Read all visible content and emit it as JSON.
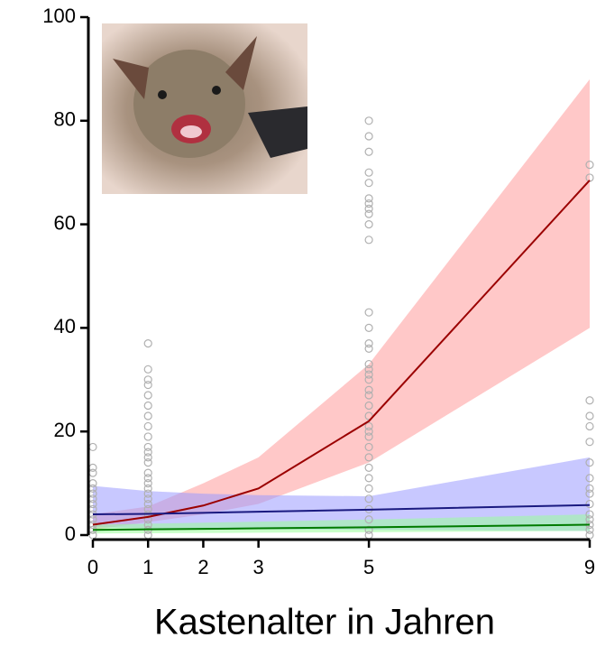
{
  "chart_data": {
    "type": "line",
    "x_label": "Kastenalter in Jahren",
    "x": [
      0,
      1,
      2,
      3,
      5,
      9
    ],
    "xlim": [
      0,
      9
    ],
    "xticks": [
      0,
      1,
      2,
      3,
      5,
      9
    ],
    "ylim": [
      0,
      100
    ],
    "yticks": [
      0,
      20,
      40,
      60,
      80,
      100
    ],
    "series": [
      {
        "color": "#9b0000",
        "band_color": "#ff9a9a",
        "values": [
          2,
          3.5,
          5.7,
          9,
          22,
          68.5
        ],
        "band_lower": [
          1,
          2.5,
          4,
          6,
          14,
          40
        ],
        "band_upper": [
          4,
          5.5,
          10,
          15,
          33,
          88
        ]
      },
      {
        "color": "#1a1a80",
        "band_color": "#9a9aff",
        "values": [
          4,
          4.1,
          4.3,
          4.5,
          4.9,
          5.8
        ],
        "band_lower": [
          1.5,
          1.3,
          1.2,
          1.1,
          1,
          0.8
        ],
        "band_upper": [
          9.5,
          8.5,
          8,
          7.7,
          7.5,
          15
        ]
      },
      {
        "color": "#007a00",
        "band_color": "#9aff9a",
        "values": [
          1,
          1.1,
          1.2,
          1.3,
          1.5,
          2
        ],
        "band_lower": [
          0.3,
          0.35,
          0.4,
          0.45,
          0.55,
          0.8
        ],
        "band_upper": [
          2,
          2.2,
          2.4,
          2.6,
          3,
          4
        ]
      }
    ],
    "points": {
      "color": "#b0b0b0",
      "x": [
        0,
        0,
        0,
        0,
        0,
        0,
        0,
        0,
        0,
        0,
        0,
        0,
        0,
        0,
        1,
        1,
        1,
        1,
        1,
        1,
        1,
        1,
        1,
        1,
        1,
        1,
        1,
        1,
        1,
        1,
        1,
        1,
        1,
        1,
        1,
        1,
        1,
        1,
        1,
        1,
        5,
        5,
        5,
        5,
        5,
        5,
        5,
        5,
        5,
        5,
        5,
        5,
        5,
        5,
        5,
        5,
        5,
        5,
        5,
        5,
        5,
        5,
        5,
        5,
        5,
        5,
        5,
        5,
        5,
        5,
        5,
        5,
        5,
        5,
        5,
        5,
        9,
        9,
        9,
        9,
        9,
        9,
        9,
        9,
        9,
        9,
        9,
        9,
        9,
        9,
        9,
        9
      ],
      "y": [
        17,
        13,
        12,
        10,
        9,
        8,
        7,
        6,
        5,
        4,
        3,
        2,
        1,
        0,
        37,
        32,
        30,
        29,
        27,
        25,
        23,
        21,
        19,
        17,
        16,
        15,
        14,
        12,
        11,
        10,
        9,
        8,
        7,
        6,
        5,
        4,
        3,
        2,
        1,
        0,
        80,
        77,
        74,
        70,
        68,
        65,
        64,
        63,
        62,
        60,
        57,
        43,
        40,
        37,
        36,
        33,
        32,
        31,
        30,
        28,
        27,
        25,
        23,
        21,
        20,
        19,
        17,
        15,
        13,
        11,
        9,
        7,
        5,
        3,
        1,
        0,
        71.5,
        69,
        26,
        23,
        21,
        18,
        14,
        11,
        9,
        8,
        6,
        4,
        3,
        2,
        1,
        0
      ]
    }
  }
}
